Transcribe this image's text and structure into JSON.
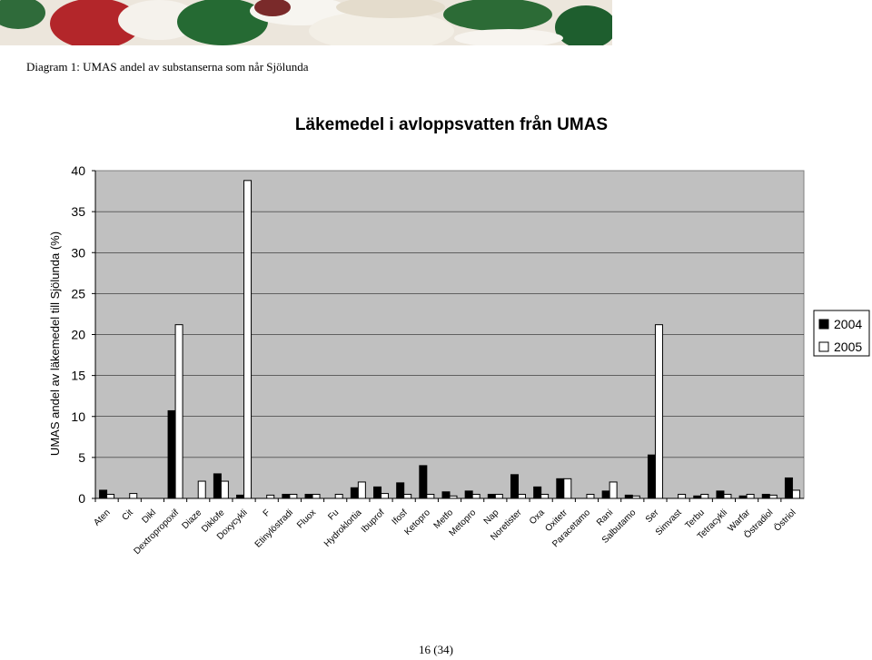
{
  "caption": "Diagram 1: UMAS andel av substanserna som når Sjölunda",
  "page_number": "16 (34)",
  "chart_data": {
    "type": "bar",
    "title": "Läkemedel i avloppsvatten från UMAS",
    "xlabel": "",
    "ylabel": "UMAS andel av läkemedel till Sjölunda (%)",
    "ylim": [
      0,
      40
    ],
    "yticks": [
      0,
      5,
      10,
      15,
      20,
      25,
      30,
      35,
      40
    ],
    "grid": true,
    "legend_position": "right",
    "categories": [
      "Aten",
      "Cit",
      "Dikl",
      "Dextropropoxif",
      "Diaze",
      "Diklofe",
      "Doxycykli",
      "F",
      "Etinylöstradi",
      "Fluox",
      "Fu",
      "Hydroklortia",
      "Ibuprof",
      "Ifosf",
      "Ketopro",
      "Metfo",
      "Metopro",
      "Nap",
      "Noretister",
      "Oxa",
      "Oxitetr",
      "Paracetamo",
      "Rani",
      "Salbutamo",
      "Ser",
      "Simvast",
      "Terbu",
      "Tetracykli",
      "Warfar",
      "Östradiol",
      "Östriol"
    ],
    "series": [
      {
        "name": "2004",
        "color": "#000000",
        "values": [
          1.0,
          0.0,
          0.0,
          10.7,
          0.0,
          3.0,
          0.4,
          0.0,
          0.5,
          0.5,
          0.0,
          1.3,
          1.4,
          1.9,
          4.0,
          0.8,
          0.9,
          0.5,
          2.9,
          1.4,
          2.4,
          0.0,
          0.9,
          0.4,
          5.3,
          0.0,
          0.3,
          0.9,
          0.3,
          0.5,
          2.5
        ]
      },
      {
        "name": "2005",
        "color": "#ffffff",
        "values": [
          0.5,
          0.6,
          0.0,
          21.2,
          2.1,
          2.1,
          38.8,
          0.4,
          0.5,
          0.5,
          0.5,
          2.0,
          0.6,
          0.5,
          0.5,
          0.3,
          0.5,
          0.5,
          0.5,
          0.5,
          2.4,
          0.5,
          2.0,
          0.3,
          21.2,
          0.5,
          0.5,
          0.5,
          0.5,
          0.4,
          1.0
        ]
      }
    ]
  }
}
